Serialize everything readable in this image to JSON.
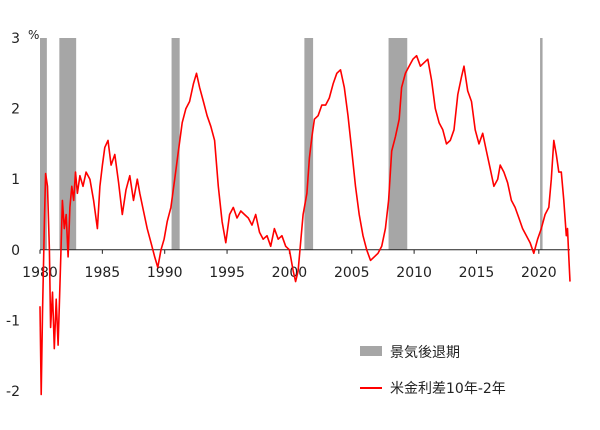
{
  "chart_data": {
    "type": "line",
    "unit_label": "%",
    "x_range": [
      1980,
      2022.5
    ],
    "x_ticks": [
      1980,
      1985,
      1990,
      1995,
      2000,
      2005,
      2010,
      2015,
      2020
    ],
    "ylim": [
      -2,
      3
    ],
    "y_ticks": [
      -2,
      -1,
      0,
      1,
      2,
      3
    ],
    "legend": [
      {
        "kind": "recession",
        "label": "景気後退期",
        "color": "#a6a6a6"
      },
      {
        "kind": "spread",
        "label": "米金利差10年-2年",
        "color": "#ff0000"
      }
    ],
    "recession_periods": [
      [
        1980.0,
        1980.55
      ],
      [
        1981.55,
        1982.9
      ],
      [
        1990.55,
        1991.2
      ],
      [
        2001.2,
        2001.9
      ],
      [
        2007.95,
        2009.45
      ],
      [
        2020.1,
        2020.3
      ]
    ],
    "series": [
      {
        "points": [
          [
            1980.0,
            -0.8
          ],
          [
            1980.1,
            -2.05
          ],
          [
            1980.2,
            -0.9
          ],
          [
            1980.35,
            0.4
          ],
          [
            1980.45,
            1.08
          ],
          [
            1980.6,
            0.9
          ],
          [
            1980.75,
            0.0
          ],
          [
            1980.85,
            -1.1
          ],
          [
            1981.0,
            -0.6
          ],
          [
            1981.15,
            -1.4
          ],
          [
            1981.3,
            -0.7
          ],
          [
            1981.45,
            -1.35
          ],
          [
            1981.55,
            -0.8
          ],
          [
            1981.7,
            0.1
          ],
          [
            1981.8,
            0.7
          ],
          [
            1981.95,
            0.3
          ],
          [
            1982.1,
            0.5
          ],
          [
            1982.25,
            -0.1
          ],
          [
            1982.4,
            0.6
          ],
          [
            1982.55,
            0.9
          ],
          [
            1982.7,
            0.7
          ],
          [
            1982.85,
            1.1
          ],
          [
            1983.0,
            0.8
          ],
          [
            1983.2,
            1.05
          ],
          [
            1983.45,
            0.9
          ],
          [
            1983.7,
            1.1
          ],
          [
            1984.0,
            1.0
          ],
          [
            1984.3,
            0.7
          ],
          [
            1984.6,
            0.3
          ],
          [
            1984.8,
            0.9
          ],
          [
            1985.0,
            1.2
          ],
          [
            1985.2,
            1.45
          ],
          [
            1985.45,
            1.55
          ],
          [
            1985.7,
            1.2
          ],
          [
            1986.0,
            1.35
          ],
          [
            1986.3,
            0.95
          ],
          [
            1986.6,
            0.5
          ],
          [
            1986.9,
            0.85
          ],
          [
            1987.2,
            1.05
          ],
          [
            1987.5,
            0.7
          ],
          [
            1987.8,
            1.0
          ],
          [
            1988.0,
            0.8
          ],
          [
            1988.3,
            0.55
          ],
          [
            1988.6,
            0.3
          ],
          [
            1988.9,
            0.1
          ],
          [
            1989.2,
            -0.1
          ],
          [
            1989.45,
            -0.25
          ],
          [
            1989.7,
            0.0
          ],
          [
            1989.95,
            0.15
          ],
          [
            1990.2,
            0.4
          ],
          [
            1990.5,
            0.6
          ],
          [
            1990.8,
            1.0
          ],
          [
            1991.1,
            1.4
          ],
          [
            1991.4,
            1.8
          ],
          [
            1991.7,
            2.0
          ],
          [
            1992.0,
            2.1
          ],
          [
            1992.3,
            2.35
          ],
          [
            1992.55,
            2.5
          ],
          [
            1992.8,
            2.3
          ],
          [
            1993.1,
            2.1
          ],
          [
            1993.4,
            1.9
          ],
          [
            1993.7,
            1.75
          ],
          [
            1994.0,
            1.55
          ],
          [
            1994.3,
            0.9
          ],
          [
            1994.6,
            0.4
          ],
          [
            1994.9,
            0.1
          ],
          [
            1995.2,
            0.5
          ],
          [
            1995.5,
            0.6
          ],
          [
            1995.8,
            0.45
          ],
          [
            1996.1,
            0.55
          ],
          [
            1996.4,
            0.5
          ],
          [
            1996.7,
            0.45
          ],
          [
            1997.0,
            0.35
          ],
          [
            1997.3,
            0.5
          ],
          [
            1997.6,
            0.25
          ],
          [
            1997.9,
            0.15
          ],
          [
            1998.2,
            0.2
          ],
          [
            1998.5,
            0.05
          ],
          [
            1998.8,
            0.3
          ],
          [
            1999.1,
            0.15
          ],
          [
            1999.4,
            0.2
          ],
          [
            1999.7,
            0.05
          ],
          [
            2000.0,
            0.0
          ],
          [
            2000.3,
            -0.3
          ],
          [
            2000.5,
            -0.45
          ],
          [
            2000.7,
            -0.3
          ],
          [
            2000.9,
            0.1
          ],
          [
            2001.1,
            0.5
          ],
          [
            2001.4,
            0.8
          ],
          [
            2001.6,
            1.3
          ],
          [
            2001.8,
            1.6
          ],
          [
            2002.0,
            1.85
          ],
          [
            2002.3,
            1.9
          ],
          [
            2002.6,
            2.05
          ],
          [
            2002.9,
            2.05
          ],
          [
            2003.2,
            2.15
          ],
          [
            2003.5,
            2.35
          ],
          [
            2003.8,
            2.5
          ],
          [
            2004.1,
            2.55
          ],
          [
            2004.4,
            2.3
          ],
          [
            2004.7,
            1.9
          ],
          [
            2005.0,
            1.4
          ],
          [
            2005.3,
            0.9
          ],
          [
            2005.6,
            0.5
          ],
          [
            2005.9,
            0.2
          ],
          [
            2006.2,
            0.0
          ],
          [
            2006.5,
            -0.15
          ],
          [
            2006.8,
            -0.1
          ],
          [
            2007.1,
            -0.05
          ],
          [
            2007.4,
            0.05
          ],
          [
            2007.7,
            0.3
          ],
          [
            2007.95,
            0.7
          ],
          [
            2008.2,
            1.4
          ],
          [
            2008.5,
            1.6
          ],
          [
            2008.8,
            1.85
          ],
          [
            2009.0,
            2.3
          ],
          [
            2009.3,
            2.5
          ],
          [
            2009.6,
            2.6
          ],
          [
            2009.9,
            2.7
          ],
          [
            2010.2,
            2.75
          ],
          [
            2010.5,
            2.6
          ],
          [
            2010.8,
            2.65
          ],
          [
            2011.1,
            2.7
          ],
          [
            2011.4,
            2.4
          ],
          [
            2011.7,
            2.0
          ],
          [
            2012.0,
            1.8
          ],
          [
            2012.3,
            1.7
          ],
          [
            2012.6,
            1.5
          ],
          [
            2012.9,
            1.55
          ],
          [
            2013.2,
            1.7
          ],
          [
            2013.5,
            2.2
          ],
          [
            2013.8,
            2.45
          ],
          [
            2014.0,
            2.6
          ],
          [
            2014.3,
            2.25
          ],
          [
            2014.6,
            2.1
          ],
          [
            2014.9,
            1.7
          ],
          [
            2015.2,
            1.5
          ],
          [
            2015.5,
            1.65
          ],
          [
            2015.8,
            1.4
          ],
          [
            2016.1,
            1.15
          ],
          [
            2016.4,
            0.9
          ],
          [
            2016.7,
            1.0
          ],
          [
            2016.9,
            1.2
          ],
          [
            2017.2,
            1.1
          ],
          [
            2017.5,
            0.95
          ],
          [
            2017.8,
            0.7
          ],
          [
            2018.1,
            0.6
          ],
          [
            2018.4,
            0.45
          ],
          [
            2018.7,
            0.3
          ],
          [
            2019.0,
            0.2
          ],
          [
            2019.3,
            0.1
          ],
          [
            2019.6,
            -0.05
          ],
          [
            2019.9,
            0.15
          ],
          [
            2020.2,
            0.3
          ],
          [
            2020.5,
            0.5
          ],
          [
            2020.8,
            0.6
          ],
          [
            2021.0,
            1.0
          ],
          [
            2021.2,
            1.55
          ],
          [
            2021.4,
            1.35
          ],
          [
            2021.6,
            1.1
          ],
          [
            2021.8,
            1.1
          ],
          [
            2022.0,
            0.7
          ],
          [
            2022.2,
            0.2
          ],
          [
            2022.3,
            0.3
          ],
          [
            2022.4,
            -0.1
          ],
          [
            2022.5,
            -0.45
          ]
        ]
      }
    ]
  }
}
